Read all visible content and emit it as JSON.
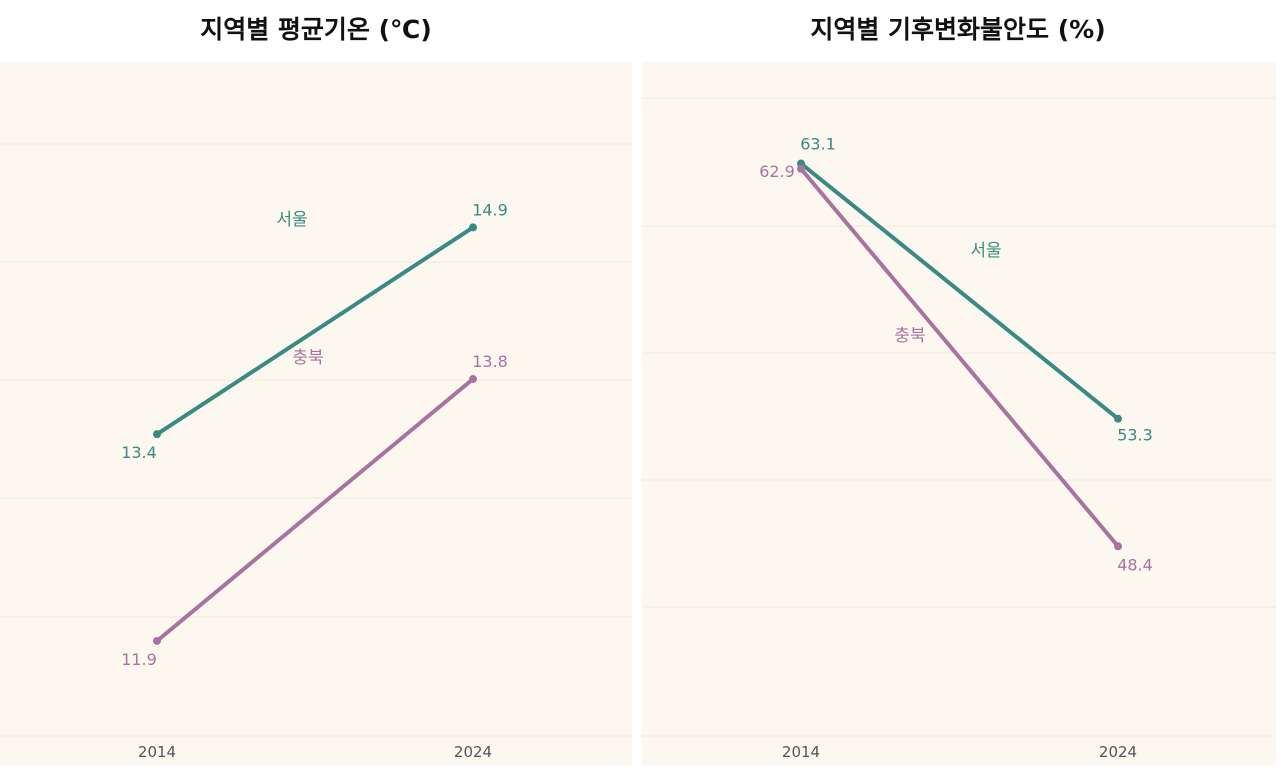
{
  "colors": {
    "background": "#fcf8ef",
    "grid": "#efe9dc",
    "axis_text": "#555555",
    "title_text": "#111111",
    "seoul": "#3a8a84",
    "chungbuk": "#a8739f"
  },
  "chart_data": [
    {
      "type": "line",
      "title": "지역별 평균기온 (℃)",
      "categories": [
        "2014",
        "2024"
      ],
      "ylim": [
        11,
        16.1
      ],
      "grid": true,
      "series": [
        {
          "name": "서울",
          "color_key": "seoul",
          "values": [
            13.4,
            14.9
          ],
          "value_labels": [
            "13.4",
            "14.9"
          ]
        },
        {
          "name": "충북",
          "color_key": "chungbuk",
          "values": [
            11.9,
            13.8
          ],
          "value_labels": [
            "11.9",
            "13.8"
          ]
        }
      ]
    },
    {
      "type": "line",
      "title": "지역별 기후변화불안도 (%)",
      "categories": [
        "2014",
        "2024"
      ],
      "ylim": [
        40,
        67
      ],
      "grid": true,
      "series": [
        {
          "name": "서울",
          "color_key": "seoul",
          "values": [
            63.1,
            53.3
          ],
          "value_labels": [
            "63.1",
            "53.3"
          ]
        },
        {
          "name": "충북",
          "color_key": "chungbuk",
          "values": [
            62.9,
            48.4
          ],
          "value_labels": [
            "62.9",
            "48.4"
          ]
        }
      ]
    }
  ]
}
